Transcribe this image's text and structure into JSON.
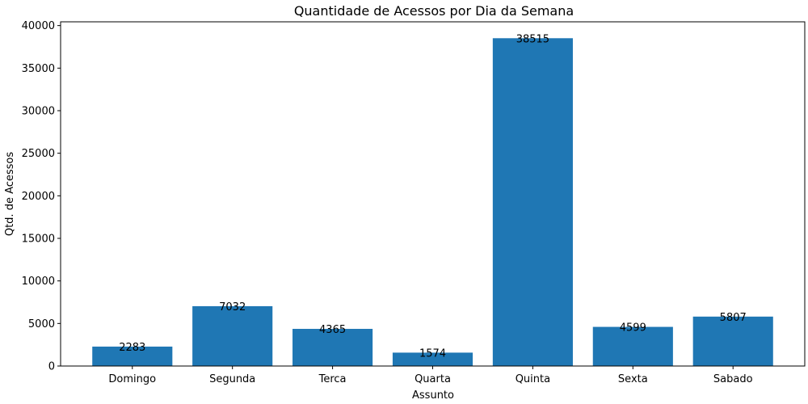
{
  "chart_data": {
    "type": "bar",
    "title": "Quantidade de Acessos por Dia da Semana",
    "xlabel": "Assunto",
    "ylabel": "Qtd. de Acessos",
    "categories": [
      "Domingo",
      "Segunda",
      "Terca",
      "Quarta",
      "Quinta",
      "Sexta",
      "Sabado"
    ],
    "values": [
      2283,
      7032,
      4365,
      1574,
      38515,
      4599,
      5807
    ],
    "data_labels": [
      "2283",
      "7032",
      "4365",
      "1574",
      "38515",
      "4599",
      "5807"
    ],
    "yticks": [
      0,
      5000,
      10000,
      15000,
      20000,
      25000,
      30000,
      35000,
      40000
    ],
    "ytick_labels": [
      "0",
      "5000",
      "10000",
      "15000",
      "20000",
      "25000",
      "30000",
      "35000",
      "40000"
    ],
    "ylim": [
      0,
      40441
    ],
    "bar_color": "#1f77b4",
    "grid": false,
    "legend": "none"
  }
}
